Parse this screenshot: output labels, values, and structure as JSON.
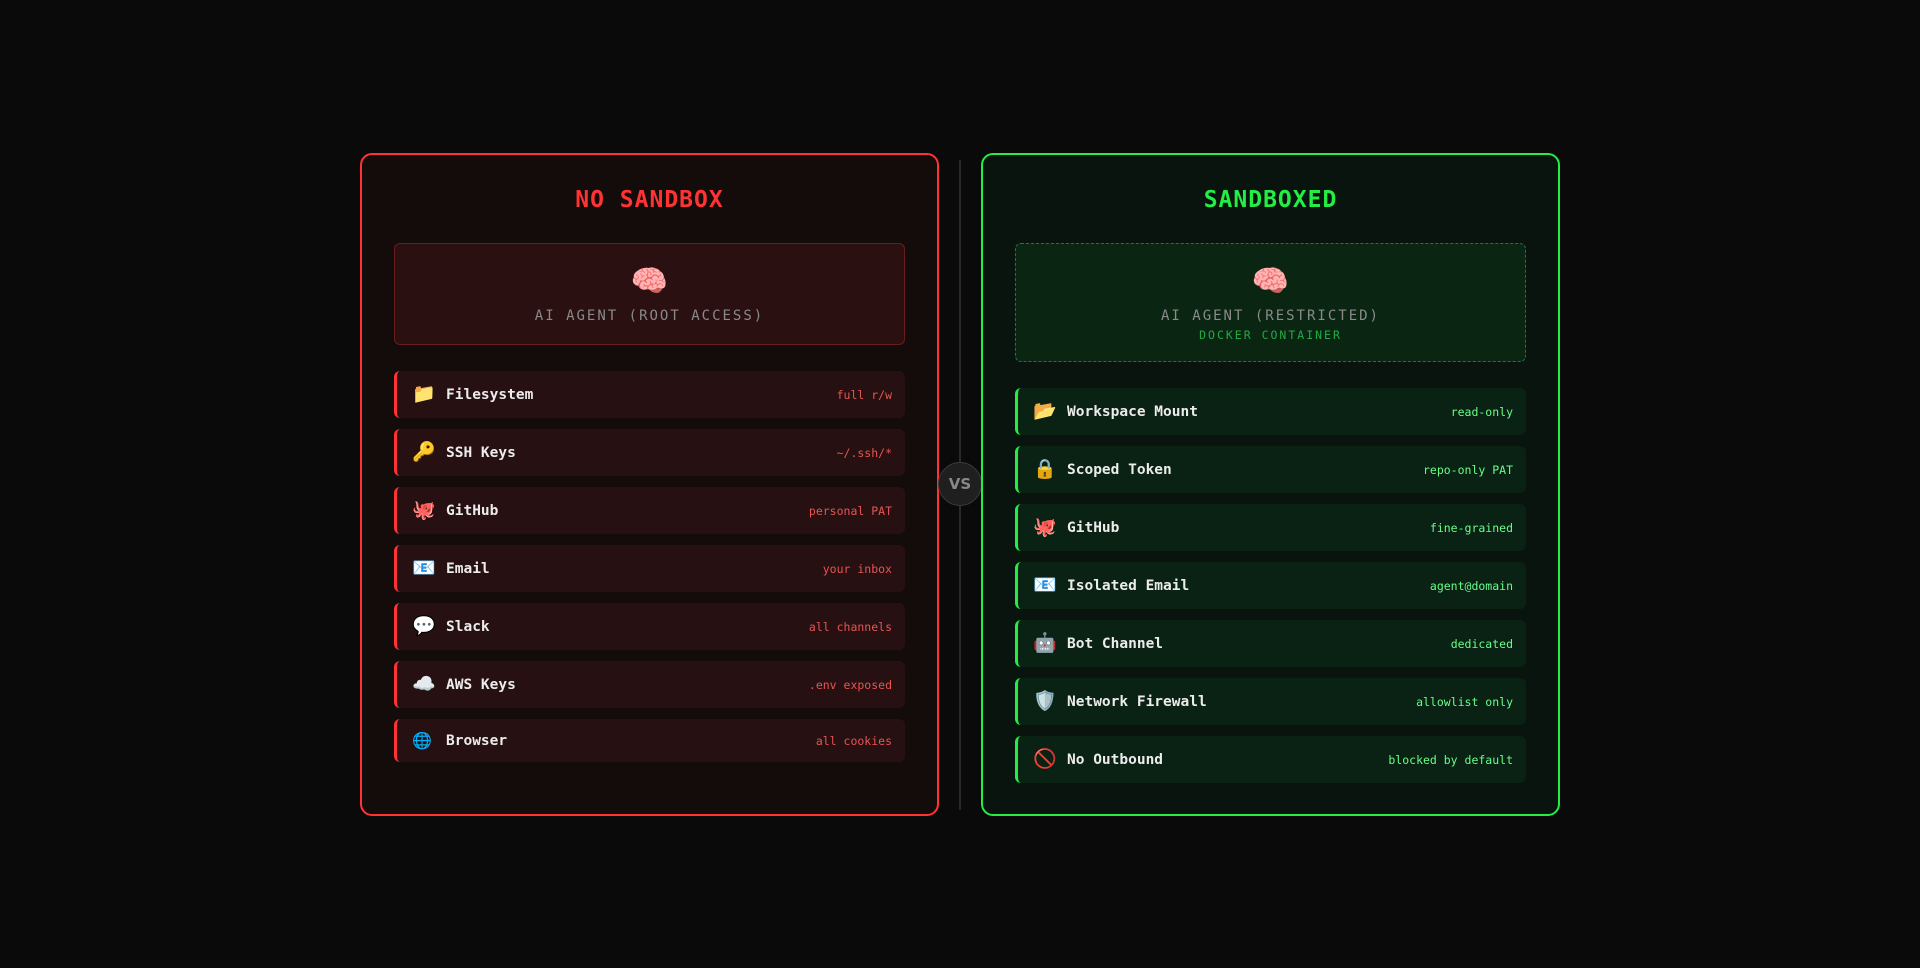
{
  "left": {
    "title": "NO SANDBOX",
    "agent": {
      "icon": "🧠",
      "label": "AI AGENT (ROOT ACCESS)"
    },
    "items": [
      {
        "icon": "📁",
        "name": "Filesystem",
        "tag": "full r/w"
      },
      {
        "icon": "🔑",
        "name": "SSH Keys",
        "tag": "~/.ssh/*"
      },
      {
        "icon": "🐙",
        "name": "GitHub",
        "tag": "personal PAT"
      },
      {
        "icon": "📧",
        "name": "Email",
        "tag": "your inbox"
      },
      {
        "icon": "💬",
        "name": "Slack",
        "tag": "all channels"
      },
      {
        "icon": "☁️",
        "name": "AWS Keys",
        "tag": ".env exposed"
      },
      {
        "icon": "🌐",
        "name": "Browser",
        "tag": "all cookies"
      }
    ]
  },
  "divider": {
    "label": "VS"
  },
  "right": {
    "title": "SANDBOXED",
    "agent": {
      "icon": "🧠",
      "label": "AI AGENT (RESTRICTED)",
      "sublabel": "DOCKER CONTAINER"
    },
    "items": [
      {
        "icon": "📂",
        "name": "Workspace Mount",
        "tag": "read-only"
      },
      {
        "icon": "🔒",
        "name": "Scoped Token",
        "tag": "repo-only PAT"
      },
      {
        "icon": "🐙",
        "name": "GitHub",
        "tag": "fine-grained"
      },
      {
        "icon": "📧",
        "name": "Isolated Email",
        "tag": "agent@domain"
      },
      {
        "icon": "🤖",
        "name": "Bot Channel",
        "tag": "dedicated"
      },
      {
        "icon": "🛡️",
        "name": "Network Firewall",
        "tag": "allowlist only"
      },
      {
        "icon": "🚫",
        "name": "No Outbound",
        "tag": "blocked by default"
      }
    ]
  },
  "colors": {
    "danger": "#ff3333",
    "safe": "#22ee44",
    "background": "#0a0a0a"
  }
}
